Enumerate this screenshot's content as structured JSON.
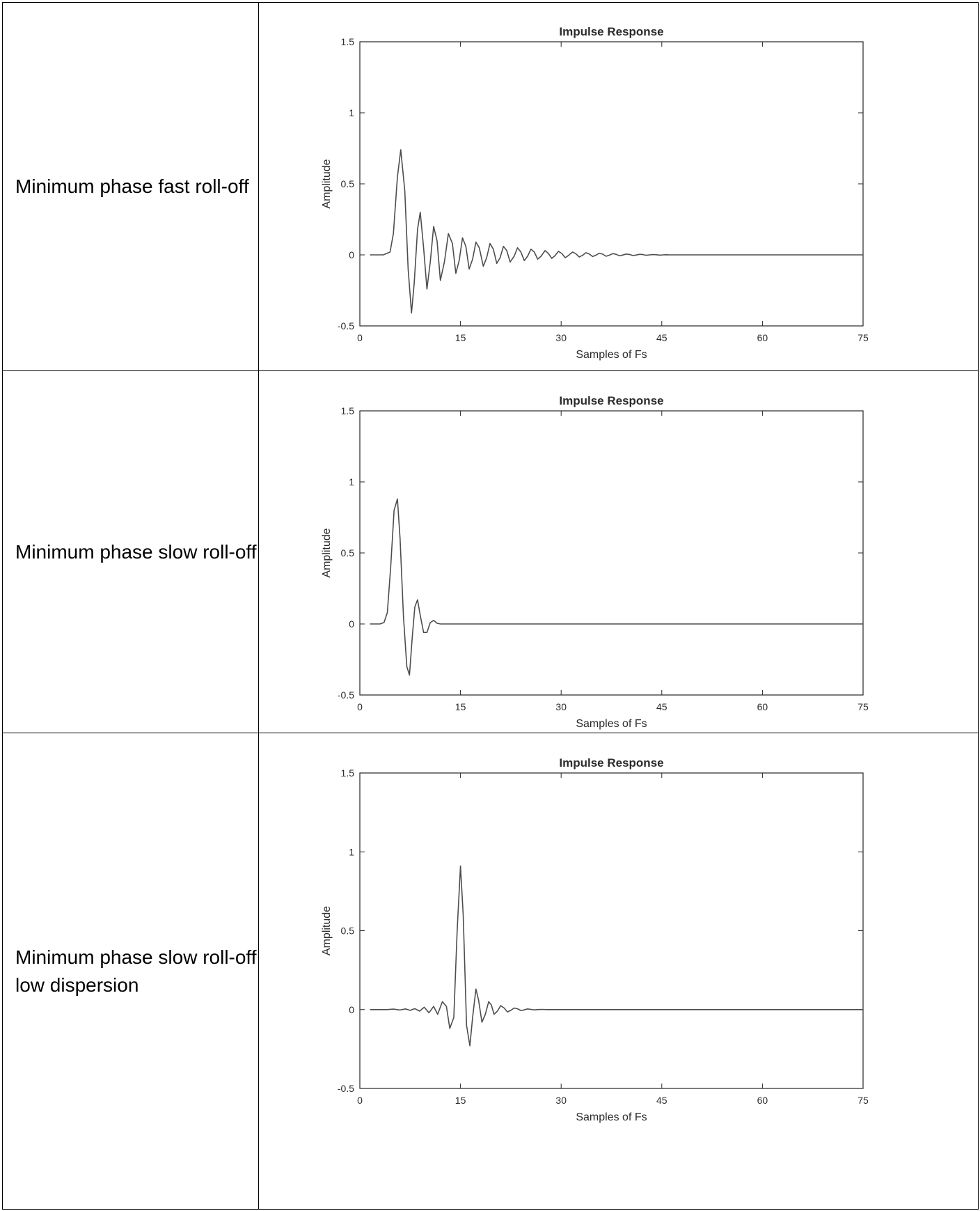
{
  "rows": [
    {
      "label": "Minimum phase fast roll-off",
      "chart_data": {
        "type": "line",
        "title": "Impulse Response",
        "xlabel": "Samples of Fs",
        "ylabel": "Amplitude",
        "xlim": [
          0,
          75
        ],
        "ylim": [
          -0.5,
          1.5
        ],
        "xticks": [
          0,
          15,
          30,
          45,
          60,
          75
        ],
        "yticks": [
          -0.5,
          0,
          0.5,
          1,
          1.5
        ],
        "grid": false,
        "line_color": "#4d4d4d",
        "series": [
          {
            "x": [
              1.5,
              3.5,
              4.5,
              5,
              5.6,
              6.1,
              6.7,
              7.2,
              7.7,
              8.1,
              8.6,
              9.0,
              9.5,
              10.0,
              10.5,
              11.0,
              11.5,
              12.0,
              12.6,
              13.2,
              13.8,
              14.3,
              14.8,
              15.3,
              15.8,
              16.3,
              16.8,
              17.3,
              17.8,
              18.4,
              18.9,
              19.4,
              19.9,
              20.4,
              20.9,
              21.4,
              21.9,
              22.4,
              23.0,
              23.5,
              24.0,
              24.5,
              25.0,
              25.5,
              26.0,
              26.5,
              27.0,
              27.6,
              28.1,
              28.6,
              29.1,
              29.6,
              30.1,
              30.6,
              31.1,
              31.7,
              32.2,
              32.7,
              33.2,
              33.7,
              34.2,
              34.7,
              35.2,
              35.7,
              36.2,
              36.7,
              37.2,
              37.7,
              38.2,
              38.7,
              39.2,
              39.7,
              40.2,
              40.7,
              41.2,
              41.7,
              42.2,
              42.7,
              43.2,
              43.7,
              44.2,
              44.7,
              45.2,
              45.7,
              46.2,
              47,
              48,
              50,
              55,
              60,
              65,
              70,
              75
            ],
            "y": [
              0,
              0,
              0.02,
              0.15,
              0.55,
              0.74,
              0.45,
              -0.1,
              -0.41,
              -0.2,
              0.18,
              0.3,
              0.05,
              -0.24,
              -0.05,
              0.2,
              0.1,
              -0.18,
              -0.05,
              0.15,
              0.08,
              -0.13,
              -0.04,
              0.12,
              0.06,
              -0.1,
              -0.03,
              0.09,
              0.05,
              -0.08,
              -0.02,
              0.08,
              0.04,
              -0.06,
              -0.02,
              0.06,
              0.03,
              -0.05,
              -0.01,
              0.05,
              0.02,
              -0.04,
              -0.01,
              0.04,
              0.02,
              -0.03,
              -0.01,
              0.03,
              0.01,
              -0.025,
              -0.005,
              0.025,
              0.01,
              -0.02,
              -0.004,
              0.02,
              0.008,
              -0.015,
              -0.003,
              0.015,
              0.006,
              -0.012,
              -0.002,
              0.012,
              0.005,
              -0.01,
              -0.002,
              0.009,
              0.004,
              -0.007,
              -0.001,
              0.006,
              0.003,
              -0.005,
              -0.001,
              0.004,
              0.002,
              -0.003,
              0,
              0.002,
              0.001,
              -0.002,
              0,
              0.001,
              0,
              0,
              0,
              0,
              0,
              0,
              0,
              0,
              0
            ]
          }
        ]
      }
    },
    {
      "label": "Minimum phase slow roll-off",
      "chart_data": {
        "type": "line",
        "title": "Impulse Response",
        "xlabel": "Samples of Fs",
        "ylabel": "Amplitude",
        "xlim": [
          0,
          75
        ],
        "ylim": [
          -0.5,
          1.5
        ],
        "xticks": [
          0,
          15,
          30,
          45,
          60,
          75
        ],
        "yticks": [
          -0.5,
          0,
          0.5,
          1,
          1.5
        ],
        "grid": false,
        "line_color": "#4d4d4d",
        "series": [
          {
            "x": [
              1.5,
              3.0,
              3.6,
              4.1,
              4.6,
              5.1,
              5.6,
              6.0,
              6.5,
              7.0,
              7.4,
              7.8,
              8.2,
              8.6,
              9.0,
              9.5,
              10.0,
              10.5,
              11.0,
              11.5,
              12.0,
              13,
              15,
              20,
              30,
              45,
              60,
              75
            ],
            "y": [
              0,
              0,
              0.01,
              0.08,
              0.4,
              0.8,
              0.88,
              0.6,
              0.05,
              -0.3,
              -0.36,
              -0.1,
              0.12,
              0.17,
              0.06,
              -0.06,
              -0.06,
              0.01,
              0.025,
              0.005,
              0,
              0,
              0,
              0,
              0,
              0,
              0,
              0
            ]
          }
        ]
      }
    },
    {
      "label": "Minimum phase slow roll-off\nlow dispersion",
      "chart_data": {
        "type": "line",
        "title": "Impulse Response",
        "xlabel": "Samples of Fs",
        "ylabel": "Amplitude",
        "xlim": [
          0,
          75
        ],
        "ylim": [
          -0.5,
          1.5
        ],
        "xticks": [
          0,
          15,
          30,
          45,
          60,
          75
        ],
        "yticks": [
          -0.5,
          0,
          0.5,
          1,
          1.5
        ],
        "grid": false,
        "line_color": "#4d4d4d",
        "series": [
          {
            "x": [
              1.5,
              4.0,
              5.0,
              6.0,
              6.8,
              7.5,
              8.2,
              8.9,
              9.6,
              10.3,
              11.0,
              11.6,
              12.3,
              12.9,
              13.4,
              14.0,
              14.5,
              15.0,
              15.4,
              15.9,
              16.4,
              16.8,
              17.3,
              17.7,
              18.2,
              18.7,
              19.2,
              19.6,
              20.0,
              20.5,
              21.0,
              21.5,
              22.0,
              22.5,
              23.0,
              23.5,
              24.0,
              24.5,
              25.0,
              25.5,
              26.0,
              26.5,
              27.0,
              28,
              29,
              30,
              32,
              35,
              40,
              45,
              50,
              60,
              75
            ],
            "y": [
              0,
              0,
              0.003,
              -0.003,
              0.004,
              -0.005,
              0.006,
              -0.01,
              0.015,
              -0.02,
              0.02,
              -0.03,
              0.05,
              0.02,
              -0.12,
              -0.05,
              0.5,
              0.91,
              0.6,
              -0.1,
              -0.23,
              -0.05,
              0.13,
              0.06,
              -0.08,
              -0.03,
              0.05,
              0.03,
              -0.03,
              -0.01,
              0.025,
              0.01,
              -0.015,
              -0.005,
              0.01,
              0.005,
              -0.006,
              -0.002,
              0.004,
              0.001,
              -0.002,
              0,
              0.001,
              0,
              0,
              0,
              0,
              0,
              0,
              0,
              0,
              0,
              0
            ]
          }
        ]
      }
    }
  ]
}
